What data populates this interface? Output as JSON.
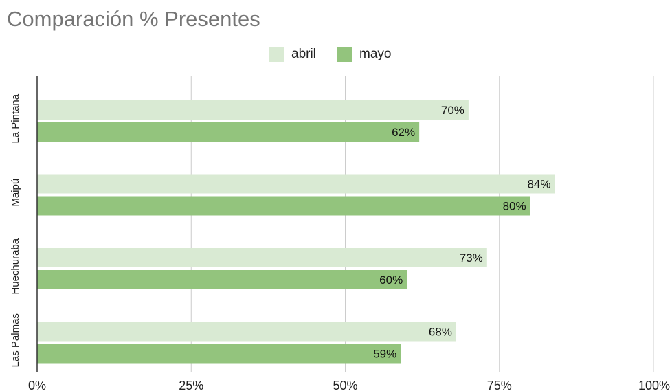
{
  "chart_data": {
    "type": "bar",
    "orientation": "horizontal",
    "title": "Comparación % Presentes",
    "categories": [
      "La Pintana",
      "Maipú",
      "Huechuraba",
      "Las Palmas"
    ],
    "series": [
      {
        "name": "abril",
        "color": "#d9ead3",
        "values": [
          70,
          84,
          73,
          68
        ]
      },
      {
        "name": "mayo",
        "color": "#93c47d",
        "values": [
          62,
          80,
          60,
          59
        ]
      }
    ],
    "value_labels": [
      [
        "70%",
        "84%",
        "73%",
        "68%"
      ],
      [
        "62%",
        "80%",
        "60%",
        "59%"
      ]
    ],
    "xlim": [
      0,
      100
    ],
    "x_ticks": [
      0,
      25,
      50,
      75,
      100
    ],
    "x_tick_labels": [
      "0%",
      "25%",
      "50%",
      "75%",
      "100%"
    ],
    "xlabel": "",
    "ylabel": "",
    "grid": true,
    "legend_position": "top"
  }
}
